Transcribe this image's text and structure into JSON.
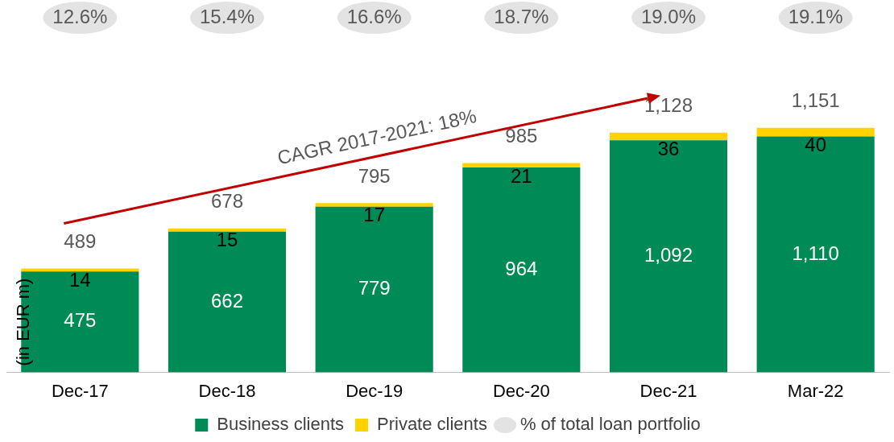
{
  "chart_data": {
    "type": "bar",
    "stacked": true,
    "ylabel": "(in EUR m)",
    "categories": [
      "Dec-17",
      "Dec-18",
      "Dec-19",
      "Dec-20",
      "Dec-21",
      "Mar-22"
    ],
    "series": [
      {
        "name": "Business clients",
        "color": "#008a56",
        "values": [
          475,
          662,
          779,
          964,
          1092,
          1110
        ],
        "value_labels": [
          "475",
          "662",
          "779",
          "964",
          "1,092",
          "1,110"
        ]
      },
      {
        "name": "Private clients",
        "color": "#ffd200",
        "values": [
          14,
          15,
          17,
          21,
          36,
          40
        ],
        "value_labels": [
          "14",
          "15",
          "17",
          "21",
          "36",
          "40"
        ]
      }
    ],
    "totals": [
      "489",
      "678",
      "795",
      "985",
      "1,128",
      "1,151"
    ],
    "grid": false,
    "legend": "bottom",
    "annotations": [
      "CAGR 2017-2021: 18%",
      "% of total loan portfolio",
      "12.6%",
      "15.4%",
      "16.6%",
      "18.7%",
      "19.0%",
      "19.1%"
    ]
  }
}
